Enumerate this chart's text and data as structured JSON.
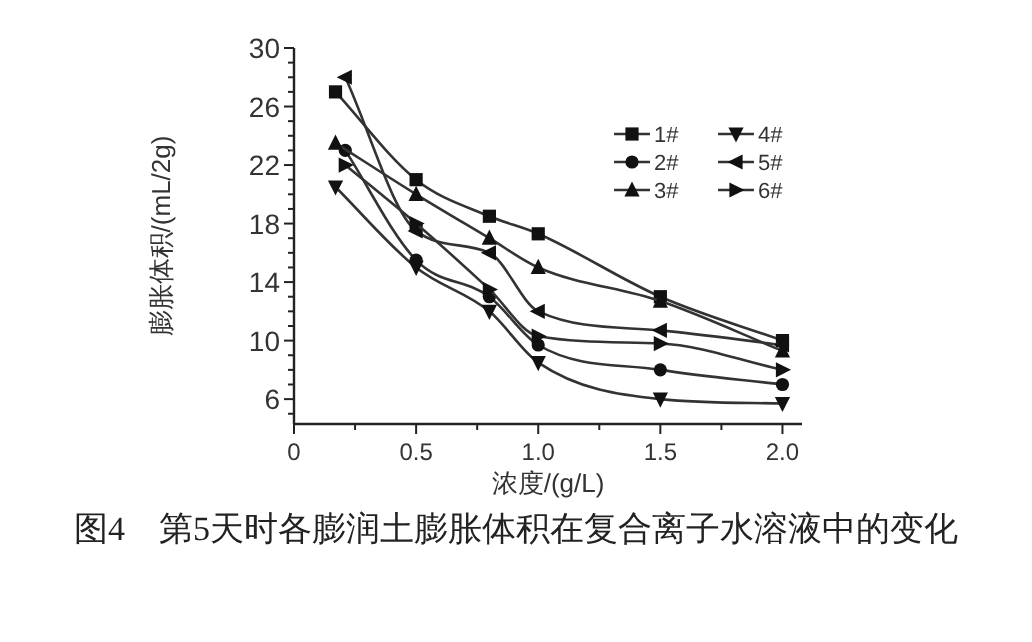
{
  "chart_data": {
    "type": "line",
    "xlabel": "浓度/(g/L)",
    "ylabel": "膨胀体积/(mL/2g)",
    "annotations": [
      "图4　第5天时各膨润土膨胀体积在复合离子水溶液中的变化"
    ],
    "xlim": [
      0,
      2.08
    ],
    "ylim": [
      4.3,
      30
    ],
    "xticks": [
      0,
      {
        "value": 0.25,
        "label": null
      },
      {
        "value": 0.5,
        "label": "0.5"
      },
      {
        "value": 0.75,
        "label": null
      },
      {
        "value": 1,
        "label": "1.0"
      },
      {
        "value": 1.25,
        "label": null
      },
      {
        "value": 1.5,
        "label": "1.5"
      },
      {
        "value": 1.75,
        "label": null
      },
      {
        "value": 2,
        "label": "2.0"
      }
    ],
    "yticks": [
      {
        "value": 5,
        "label": null
      },
      6,
      {
        "value": 7,
        "label": null
      },
      {
        "value": 8,
        "label": null
      },
      {
        "value": 9,
        "label": null
      },
      10,
      {
        "value": 11,
        "label": null
      },
      {
        "value": 12,
        "label": null
      },
      {
        "value": 13,
        "label": null
      },
      14,
      {
        "value": 15,
        "label": null
      },
      {
        "value": 16,
        "label": null
      },
      {
        "value": 17,
        "label": null
      },
      18,
      {
        "value": 19,
        "label": null
      },
      {
        "value": 20,
        "label": null
      },
      {
        "value": 21,
        "label": null
      },
      22,
      {
        "value": 23,
        "label": null
      },
      {
        "value": 24,
        "label": null
      },
      {
        "value": 25,
        "label": null
      },
      26,
      {
        "value": 27,
        "label": null
      },
      {
        "value": 28,
        "label": null
      },
      {
        "value": 29,
        "label": null
      },
      30
    ],
    "grid": false,
    "legend": "top right",
    "series": [
      {
        "name": "1#",
        "color": "#333333",
        "marker": "square",
        "x": [
          0.17,
          0.5,
          0.8,
          1.0,
          1.5,
          2.0
        ],
        "values": [
          27,
          21,
          18.5,
          17.3,
          13,
          10
        ]
      },
      {
        "name": "2#",
        "color": "#333333",
        "marker": "circle",
        "x": [
          0.21,
          0.5,
          0.8,
          1.0,
          1.5,
          2.0
        ],
        "values": [
          23,
          15.5,
          13,
          9.7,
          8,
          7
        ]
      },
      {
        "name": "3#",
        "color": "#333333",
        "marker": "triangle",
        "x": [
          0.17,
          0.5,
          0.8,
          1.0,
          1.5,
          2.0
        ],
        "values": [
          23.5,
          20,
          17,
          15,
          12.7,
          9.3
        ]
      },
      {
        "name": "4#",
        "color": "#333333",
        "marker": "triangle-down",
        "x": [
          0.17,
          0.5,
          0.8,
          1.0,
          1.5,
          2.0
        ],
        "values": [
          20.5,
          15,
          12,
          8.5,
          6,
          5.7
        ]
      },
      {
        "name": "5#",
        "color": "#333333",
        "marker": "triangle-left",
        "x": [
          0.21,
          0.5,
          0.8,
          1.0,
          1.5,
          2.0
        ],
        "values": [
          28,
          17.5,
          16,
          12,
          10.7,
          9.7
        ]
      },
      {
        "name": "6#",
        "color": "#333333",
        "marker": "triangle-right",
        "x": [
          0.21,
          0.5,
          0.8,
          1.0,
          1.5,
          2.0
        ],
        "values": [
          22,
          18,
          13.5,
          10.3,
          9.8,
          8
        ]
      }
    ]
  }
}
